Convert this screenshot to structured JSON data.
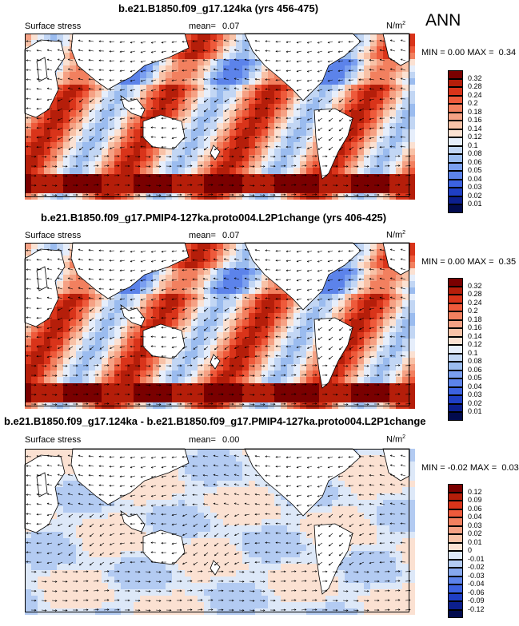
{
  "season": "ANN",
  "chart_data": [
    {
      "type": "heatmap",
      "title": "b.e21.B1850.f09_g17.124ka (yrs 456-475)",
      "left_label": "Surface stress",
      "mean_label": "mean=",
      "mean_value": "0.07",
      "units": "N/m",
      "units_exp": "2",
      "min_label": "MIN =",
      "min_value": "0.00",
      "max_label": "MAX =",
      "max_value": "0.34",
      "levels": [
        "0.32",
        "0.28",
        "0.24",
        "0.2",
        "0.18",
        "0.16",
        "0.14",
        "0.12",
        "0.1",
        "0.08",
        "0.06",
        "0.05",
        "0.04",
        "0.03",
        "0.02",
        "0.01"
      ],
      "colors": [
        "#7a0000",
        "#b51e0a",
        "#d9341a",
        "#ee5a3b",
        "#f2805f",
        "#f5a184",
        "#f8c2a7",
        "#fbe1d2",
        "#e6eefb",
        "#c2d6f4",
        "#9bbcef",
        "#7a9ff0",
        "#5c83ea",
        "#3c62e0",
        "#1f3fc4",
        "#0c1f8e",
        "#020b4e"
      ]
    },
    {
      "type": "heatmap",
      "title": "b.e21.B1850.f09_g17.PMIP4-127ka.proto004.L2P1change (yrs 406-425)",
      "left_label": "Surface stress",
      "mean_label": "mean=",
      "mean_value": "0.07",
      "units": "N/m",
      "units_exp": "2",
      "min_label": "MIN =",
      "min_value": "0.00",
      "max_label": "MAX =",
      "max_value": "0.35",
      "levels": [
        "0.32",
        "0.28",
        "0.24",
        "0.2",
        "0.18",
        "0.16",
        "0.14",
        "0.12",
        "0.1",
        "0.08",
        "0.06",
        "0.05",
        "0.04",
        "0.03",
        "0.02",
        "0.01"
      ],
      "colors": [
        "#7a0000",
        "#b51e0a",
        "#d9341a",
        "#ee5a3b",
        "#f2805f",
        "#f5a184",
        "#f8c2a7",
        "#fbe1d2",
        "#e6eefb",
        "#c2d6f4",
        "#9bbcef",
        "#7a9ff0",
        "#5c83ea",
        "#3c62e0",
        "#1f3fc4",
        "#0c1f8e",
        "#020b4e"
      ]
    },
    {
      "type": "heatmap",
      "title": "b.e21.B1850.f09_g17.124ka - b.e21.B1850.f09_g17.PMIP4-127ka.proto004.L2P1change",
      "left_label": "Surface stress",
      "mean_label": "mean=",
      "mean_value": "0.00",
      "units": "N/m",
      "units_exp": "2",
      "min_label": "MIN =",
      "min_value": "-0.02",
      "max_label": "MAX =",
      "max_value": "0.03",
      "levels": [
        "0.12",
        "0.09",
        "0.06",
        "0.04",
        "0.03",
        "0.02",
        "0.01",
        "0",
        "-0.01",
        "-0.02",
        "-0.03",
        "-0.04",
        "-0.06",
        "-0.09",
        "-0.12"
      ],
      "colors": [
        "#7a0000",
        "#b51e0a",
        "#d9341a",
        "#ee5a3b",
        "#f2805f",
        "#f5a184",
        "#f8c2a7",
        "#fbe1d2",
        "#dde8f8",
        "#b3cbf2",
        "#86a8ee",
        "#5c83ea",
        "#3c62e0",
        "#1f3fc4",
        "#0c1f8e",
        "#020b4e"
      ]
    }
  ]
}
